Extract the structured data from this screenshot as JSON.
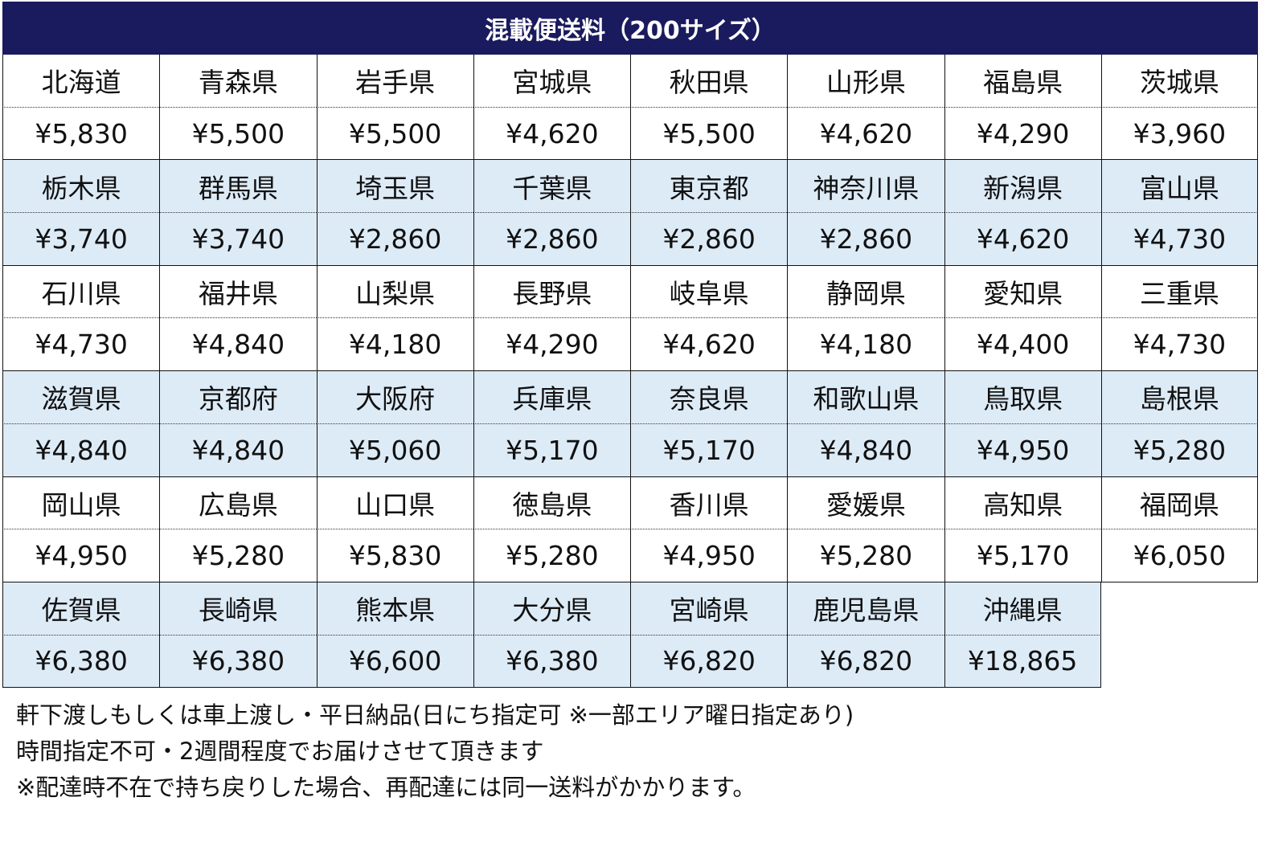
{
  "title": "混載便送料（200サイズ）",
  "colors": {
    "header_bg": "#1a1a5e",
    "alt_row_bg": "#ddebf7"
  },
  "rows": [
    [
      {
        "pref": "北海道",
        "price": "¥5,830"
      },
      {
        "pref": "青森県",
        "price": "¥5,500"
      },
      {
        "pref": "岩手県",
        "price": "¥5,500"
      },
      {
        "pref": "宮城県",
        "price": "¥4,620"
      },
      {
        "pref": "秋田県",
        "price": "¥5,500"
      },
      {
        "pref": "山形県",
        "price": "¥4,620"
      },
      {
        "pref": "福島県",
        "price": "¥4,290"
      },
      {
        "pref": "茨城県",
        "price": "¥3,960"
      }
    ],
    [
      {
        "pref": "栃木県",
        "price": "¥3,740"
      },
      {
        "pref": "群馬県",
        "price": "¥3,740"
      },
      {
        "pref": "埼玉県",
        "price": "¥2,860"
      },
      {
        "pref": "千葉県",
        "price": "¥2,860"
      },
      {
        "pref": "東京都",
        "price": "¥2,860"
      },
      {
        "pref": "神奈川県",
        "price": "¥2,860"
      },
      {
        "pref": "新潟県",
        "price": "¥4,620"
      },
      {
        "pref": "富山県",
        "price": "¥4,730"
      }
    ],
    [
      {
        "pref": "石川県",
        "price": "¥4,730"
      },
      {
        "pref": "福井県",
        "price": "¥4,840"
      },
      {
        "pref": "山梨県",
        "price": "¥4,180"
      },
      {
        "pref": "長野県",
        "price": "¥4,290"
      },
      {
        "pref": "岐阜県",
        "price": "¥4,620"
      },
      {
        "pref": "静岡県",
        "price": "¥4,180"
      },
      {
        "pref": "愛知県",
        "price": "¥4,400"
      },
      {
        "pref": "三重県",
        "price": "¥4,730"
      }
    ],
    [
      {
        "pref": "滋賀県",
        "price": "¥4,840"
      },
      {
        "pref": "京都府",
        "price": "¥4,840"
      },
      {
        "pref": "大阪府",
        "price": "¥5,060"
      },
      {
        "pref": "兵庫県",
        "price": "¥5,170"
      },
      {
        "pref": "奈良県",
        "price": "¥5,170"
      },
      {
        "pref": "和歌山県",
        "price": "¥4,840"
      },
      {
        "pref": "鳥取県",
        "price": "¥4,950"
      },
      {
        "pref": "島根県",
        "price": "¥5,280"
      }
    ],
    [
      {
        "pref": "岡山県",
        "price": "¥4,950"
      },
      {
        "pref": "広島県",
        "price": "¥5,280"
      },
      {
        "pref": "山口県",
        "price": "¥5,830"
      },
      {
        "pref": "徳島県",
        "price": "¥5,280"
      },
      {
        "pref": "香川県",
        "price": "¥4,950"
      },
      {
        "pref": "愛媛県",
        "price": "¥5,280"
      },
      {
        "pref": "高知県",
        "price": "¥5,170"
      },
      {
        "pref": "福岡県",
        "price": "¥6,050"
      }
    ],
    [
      {
        "pref": "佐賀県",
        "price": "¥6,380"
      },
      {
        "pref": "長崎県",
        "price": "¥6,380"
      },
      {
        "pref": "熊本県",
        "price": "¥6,600"
      },
      {
        "pref": "大分県",
        "price": "¥6,380"
      },
      {
        "pref": "宮崎県",
        "price": "¥6,820"
      },
      {
        "pref": "鹿児島県",
        "price": "¥6,820"
      },
      {
        "pref": "沖縄県",
        "price": "¥18,865"
      }
    ]
  ],
  "notes": [
    "軒下渡しもしくは車上渡し・平日納品(日にち指定可 ※一部エリア曜日指定あり)",
    "時間指定不可・2週間程度でお届けさせて頂きます",
    "※配達時不在で持ち戻りした場合、再配達には同一送料がかかります。"
  ]
}
